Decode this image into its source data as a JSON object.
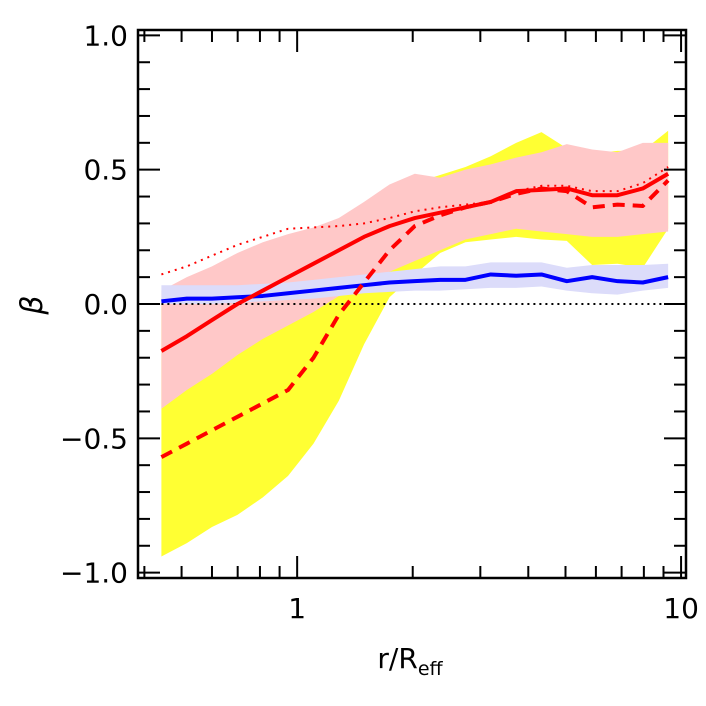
{
  "chart_data": {
    "type": "line",
    "xlabel": "r/R",
    "xlabel_sub": "eff",
    "ylabel": "β",
    "xscale": "log",
    "xlim": [
      0.385,
      10.3
    ],
    "ylim": [
      -1.02,
      1.02
    ],
    "x_ticks": [
      {
        "value": 1,
        "label": "1"
      },
      {
        "value": 10,
        "label": "10"
      }
    ],
    "y_ticks": [
      {
        "value": 1.0,
        "label": "1.0"
      },
      {
        "value": 0.5,
        "label": "0.5"
      },
      {
        "value": 0.0,
        "label": "0.0"
      },
      {
        "value": -0.5,
        "label": "−0.5"
      },
      {
        "value": -1.0,
        "label": "−1.0"
      }
    ],
    "grid": false,
    "reference_line": {
      "y": 0,
      "style": "dotted",
      "color": "#000000"
    },
    "x": [
      0.443,
      0.516,
      0.6,
      0.699,
      0.814,
      0.947,
      1.103,
      1.284,
      1.494,
      1.74,
      2.025,
      2.357,
      2.744,
      3.194,
      3.719,
      4.329,
      5.039,
      5.866,
      6.828,
      7.949,
      9.253
    ],
    "bands": [
      {
        "color": "#ffff33",
        "lower": [
          -0.94,
          -0.89,
          -0.83,
          -0.785,
          -0.72,
          -0.64,
          -0.52,
          -0.36,
          -0.15,
          0.025,
          0.11,
          0.19,
          0.23,
          0.24,
          0.25,
          0.24,
          0.235,
          0.145,
          0.15,
          0.135,
          0.28
        ],
        "upper": [
          0.0,
          0.03,
          0.06,
          0.1,
          0.14,
          0.18,
          0.22,
          0.27,
          0.33,
          0.4,
          0.45,
          0.48,
          0.51,
          0.55,
          0.6,
          0.64,
          0.58,
          0.56,
          0.57,
          0.57,
          0.645
        ]
      },
      {
        "color": "#ffc8c8",
        "lower": [
          -0.39,
          -0.32,
          -0.26,
          -0.19,
          -0.13,
          -0.08,
          -0.03,
          0.03,
          0.08,
          0.12,
          0.16,
          0.2,
          0.24,
          0.26,
          0.28,
          0.27,
          0.26,
          0.25,
          0.25,
          0.26,
          0.27
        ],
        "upper": [
          0.05,
          0.1,
          0.14,
          0.19,
          0.23,
          0.26,
          0.285,
          0.32,
          0.38,
          0.445,
          0.485,
          0.47,
          0.5,
          0.52,
          0.545,
          0.565,
          0.595,
          0.575,
          0.565,
          0.6,
          0.6
        ]
      },
      {
        "color": "#dcdcfa",
        "lower": [
          0.0,
          0.0,
          0.0,
          0.005,
          0.01,
          0.015,
          0.02,
          0.03,
          0.04,
          0.045,
          0.05,
          0.05,
          0.055,
          0.06,
          0.06,
          0.065,
          0.05,
          0.04,
          0.035,
          0.05,
          0.06
        ],
        "upper": [
          0.07,
          0.07,
          0.07,
          0.07,
          0.075,
          0.08,
          0.09,
          0.1,
          0.11,
          0.12,
          0.13,
          0.14,
          0.14,
          0.155,
          0.155,
          0.155,
          0.135,
          0.145,
          0.145,
          0.145,
          0.15
        ]
      }
    ],
    "series": [
      {
        "color": "#0000ff",
        "style": "solid",
        "values": [
          0.01,
          0.02,
          0.02,
          0.025,
          0.03,
          0.04,
          0.05,
          0.06,
          0.07,
          0.08,
          0.085,
          0.09,
          0.09,
          0.11,
          0.105,
          0.11,
          0.085,
          0.1,
          0.085,
          0.08,
          0.1
        ]
      },
      {
        "color": "#ff0000",
        "style": "solid",
        "values": [
          -0.175,
          -0.12,
          -0.06,
          0.0,
          0.05,
          0.1,
          0.15,
          0.2,
          0.25,
          0.29,
          0.32,
          0.34,
          0.36,
          0.38,
          0.42,
          0.425,
          0.43,
          0.405,
          0.405,
          0.43,
          0.485
        ]
      },
      {
        "color": "#ff0000",
        "style": "dashed",
        "values": [
          -0.57,
          -0.52,
          -0.47,
          -0.42,
          -0.37,
          -0.32,
          -0.2,
          -0.04,
          0.08,
          0.2,
          0.29,
          0.33,
          0.36,
          0.38,
          0.41,
          0.43,
          0.42,
          0.36,
          0.37,
          0.365,
          0.46
        ]
      },
      {
        "color": "#ff0000",
        "style": "dotted",
        "values": [
          0.11,
          0.14,
          0.18,
          0.22,
          0.25,
          0.28,
          0.285,
          0.29,
          0.3,
          0.32,
          0.345,
          0.36,
          0.37,
          0.38,
          0.42,
          0.44,
          0.44,
          0.42,
          0.42,
          0.45,
          0.51
        ]
      }
    ]
  }
}
